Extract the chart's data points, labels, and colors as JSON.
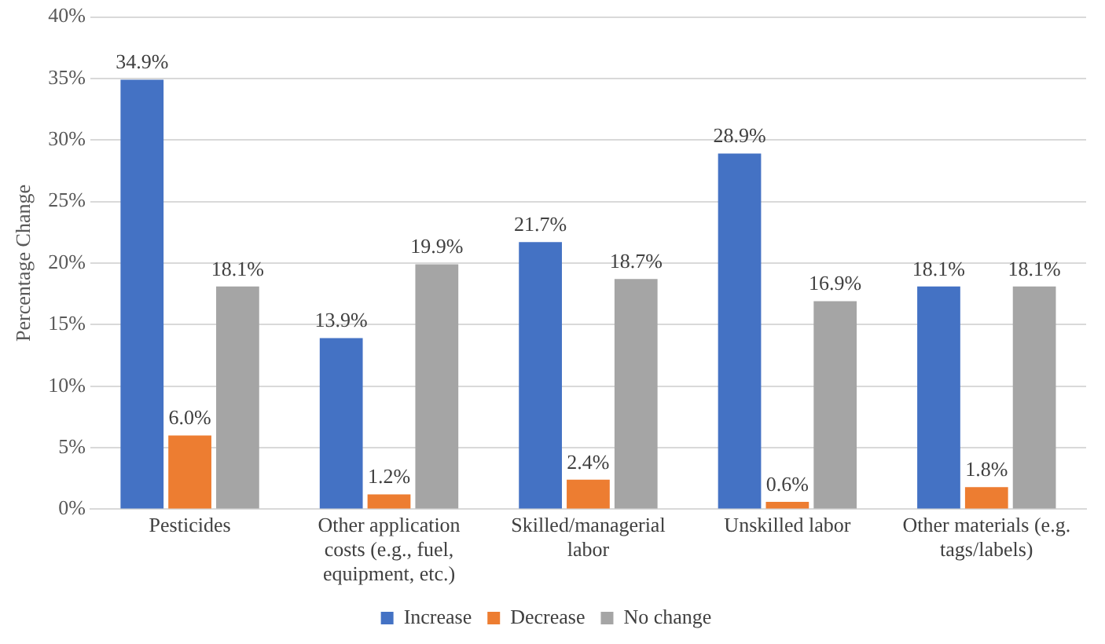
{
  "chart_data": {
    "type": "bar",
    "ylabel": "Percentage Change",
    "categories": [
      "Pesticides",
      "Other application costs (e.g., fuel, equipment, etc.)",
      "Skilled/managerial labor",
      "Unskilled labor",
      "Other materials (e.g. tags/labels)"
    ],
    "series": [
      {
        "name": "Increase",
        "color": "#4472c4",
        "values": [
          34.9,
          13.9,
          21.7,
          28.9,
          18.1
        ],
        "value_labels": [
          "34.9%",
          "13.9%",
          "21.7%",
          "28.9%",
          "18.1%"
        ]
      },
      {
        "name": "Decrease",
        "color": "#ed7d31",
        "values": [
          6.0,
          1.2,
          2.4,
          0.6,
          1.8
        ],
        "value_labels": [
          "6.0%",
          "1.2%",
          "2.4%",
          "0.6%",
          "1.8%"
        ]
      },
      {
        "name": "No change",
        "color": "#a5a5a5",
        "values": [
          18.1,
          19.9,
          18.7,
          16.9,
          18.1
        ],
        "value_labels": [
          "18.1%",
          "19.9%",
          "18.7%",
          "16.9%",
          "18.1%"
        ]
      }
    ],
    "ylim": [
      0,
      40
    ],
    "yticks": [
      {
        "value": 0,
        "label": "0%"
      },
      {
        "value": 5,
        "label": "5%"
      },
      {
        "value": 10,
        "label": "10%"
      },
      {
        "value": 15,
        "label": "15%"
      },
      {
        "value": 20,
        "label": "20%"
      },
      {
        "value": 25,
        "label": "25%"
      },
      {
        "value": 30,
        "label": "30%"
      },
      {
        "value": 35,
        "label": "35%"
      },
      {
        "value": 40,
        "label": "40%"
      }
    ],
    "grid": "y",
    "legend": "bottom"
  }
}
